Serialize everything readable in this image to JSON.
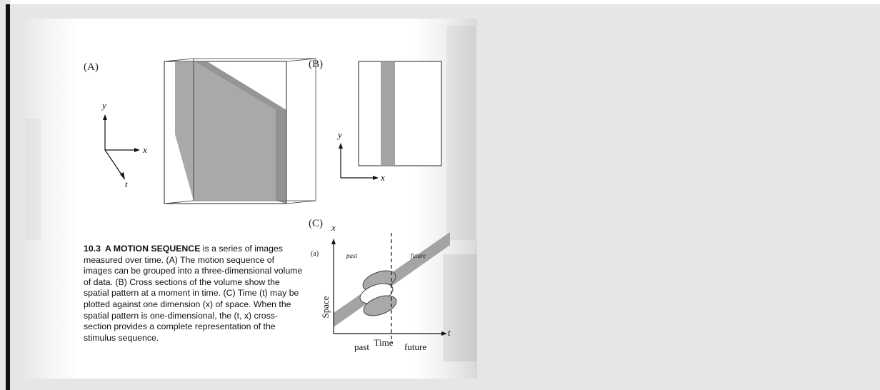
{
  "figure": {
    "panels": {
      "a_label": "(A)",
      "b_label": "(B)",
      "c_label": "(C)",
      "c_sub_label": "(a)"
    },
    "axes_a": {
      "y": "y",
      "x": "x",
      "t": "t"
    },
    "axes_b": {
      "y": "y",
      "x": "x"
    },
    "plot_c": {
      "y_axis": "x",
      "x_axis": "t",
      "ylabel": "Space",
      "xlabel": "Time",
      "region_past_italic": "past",
      "region_future_italic": "future",
      "bottom_past": "past",
      "bottom_future": "future"
    }
  },
  "caption": {
    "number": "10.3",
    "heading": "A MOTION SEQUENCE",
    "body": " is a series of images measured over time. (A) The motion sequence of images can be grouped into a three-dimensional volume of data. (B) Cross sections of the volume show the spatial pattern at a moment in time. (C) Time (t) may be plotted against one dimension (x) of space. When the spatial pattern is one-dimensional, the (t, x) cross-section provides a complete representation of the stimulus sequence."
  },
  "colors": {
    "background": "#e6e6e6",
    "page": "#ffffff",
    "shade": "#9a9a9a",
    "ellipse": "#a9a9a9"
  }
}
